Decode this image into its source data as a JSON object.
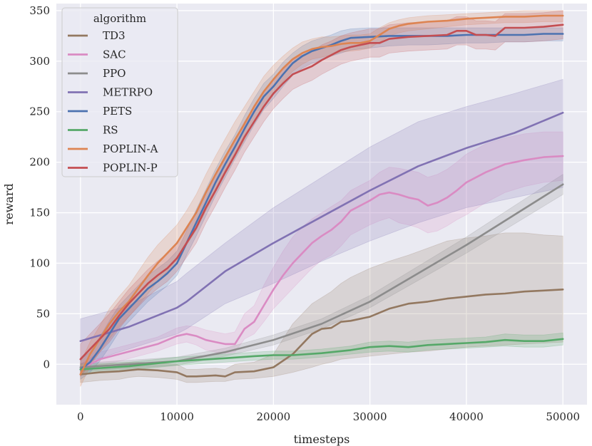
{
  "chart_data": {
    "type": "line",
    "xlabel": "timesteps",
    "ylabel": "reward",
    "xlim": [
      -2500,
      52500
    ],
    "ylim": [
      -40,
      357
    ],
    "xticks": [
      0,
      10000,
      20000,
      30000,
      40000,
      50000
    ],
    "yticks": [
      0,
      50,
      100,
      150,
      200,
      250,
      300,
      350
    ],
    "grid": true,
    "legend": {
      "title": "algorithm",
      "position": "top-left"
    },
    "series": [
      {
        "name": "TD3",
        "color": "#937860",
        "x": [
          0,
          2000,
          4000,
          5000,
          6000,
          8000,
          10000,
          11000,
          12000,
          14000,
          15000,
          16000,
          18000,
          20000,
          22000,
          24000,
          25000,
          26000,
          27000,
          28000,
          30000,
          32000,
          34000,
          36000,
          38000,
          40000,
          42000,
          44000,
          46000,
          48000,
          50000
        ],
        "y": [
          -10,
          -8,
          -7,
          -6,
          -5,
          -6,
          -8,
          -12,
          -12,
          -11,
          -12,
          -8,
          -7,
          -3,
          10,
          30,
          35,
          36,
          42,
          43,
          47,
          55,
          60,
          62,
          65,
          67,
          69,
          70,
          72,
          73,
          74
        ],
        "lo": [
          -18,
          -16,
          -15,
          -13,
          -12,
          -13,
          -15,
          -18,
          -18,
          -17,
          -17,
          -15,
          -14,
          -12,
          -8,
          -3,
          0,
          2,
          5,
          6,
          8,
          10,
          12,
          13,
          15,
          17,
          18,
          19,
          20,
          21,
          22
        ],
        "hi": [
          -4,
          0,
          1,
          2,
          2,
          1,
          0,
          -5,
          -5,
          -4,
          -5,
          0,
          2,
          10,
          40,
          60,
          66,
          72,
          80,
          86,
          95,
          102,
          108,
          115,
          122,
          125,
          127,
          130,
          130,
          128,
          127
        ]
      },
      {
        "name": "SAC",
        "color": "#da8bc3",
        "x": [
          0,
          2000,
          4000,
          6000,
          8000,
          10000,
          11000,
          12000,
          13000,
          14000,
          15000,
          16000,
          17000,
          18000,
          19000,
          20000,
          21000,
          22000,
          23000,
          24000,
          25000,
          26000,
          27000,
          28000,
          30000,
          31000,
          32000,
          33000,
          34000,
          35000,
          36000,
          37000,
          38000,
          39000,
          40000,
          42000,
          44000,
          46000,
          48000,
          50000
        ],
        "y": [
          -5,
          5,
          10,
          15,
          20,
          28,
          30,
          28,
          24,
          22,
          20,
          20,
          35,
          42,
          58,
          74,
          88,
          100,
          110,
          120,
          127,
          133,
          141,
          152,
          162,
          168,
          170,
          168,
          165,
          163,
          157,
          160,
          165,
          172,
          180,
          190,
          198,
          202,
          205,
          206
        ],
        "lo": [
          -10,
          -2,
          3,
          8,
          13,
          20,
          22,
          19,
          14,
          12,
          11,
          12,
          25,
          30,
          42,
          55,
          65,
          75,
          85,
          95,
          103,
          108,
          117,
          128,
          138,
          142,
          145,
          140,
          138,
          135,
          130,
          132,
          137,
          143,
          148,
          160,
          170,
          176,
          180,
          182
        ],
        "hi": [
          0,
          12,
          17,
          22,
          27,
          36,
          38,
          37,
          34,
          32,
          30,
          32,
          50,
          58,
          78,
          96,
          112,
          126,
          136,
          144,
          150,
          156,
          162,
          172,
          182,
          190,
          195,
          194,
          192,
          190,
          185,
          188,
          193,
          200,
          208,
          218,
          224,
          228,
          230,
          230
        ]
      },
      {
        "name": "PPO",
        "color": "#8c8c8c",
        "x": [
          0,
          5000,
          10000,
          15000,
          20000,
          25000,
          30000,
          35000,
          40000,
          45000,
          50000
        ],
        "y": [
          -3,
          0,
          3,
          12,
          24,
          40,
          62,
          90,
          118,
          148,
          178
        ],
        "lo": [
          -7,
          -4,
          -1,
          8,
          19,
          35,
          56,
          83,
          110,
          139,
          168
        ],
        "hi": [
          1,
          4,
          7,
          16,
          29,
          45,
          68,
          97,
          126,
          157,
          188
        ]
      },
      {
        "name": "METRPO",
        "color": "#8172b3",
        "x": [
          0,
          5000,
          10000,
          11000,
          15000,
          20000,
          25000,
          30000,
          35000,
          40000,
          45000,
          50000
        ],
        "y": [
          23,
          37,
          56,
          62,
          92,
          120,
          146,
          172,
          196,
          214,
          229,
          249
        ],
        "lo": [
          0,
          15,
          30,
          35,
          60,
          80,
          102,
          122,
          140,
          155,
          165,
          175
        ],
        "hi": [
          45,
          58,
          82,
          90,
          120,
          155,
          185,
          215,
          240,
          255,
          268,
          282
        ]
      },
      {
        "name": "PETS",
        "color": "#4c72b0",
        "x": [
          0,
          1000,
          2000,
          3000,
          4000,
          5000,
          6000,
          7000,
          8000,
          9000,
          10000,
          11000,
          12000,
          13000,
          14000,
          15000,
          16000,
          17000,
          18000,
          19000,
          20000,
          21000,
          22000,
          23000,
          24000,
          25000,
          26000,
          27000,
          28000,
          30000,
          32000,
          34000,
          36000,
          38000,
          40000,
          42000,
          44000,
          46000,
          48000,
          50000
        ],
        "y": [
          -5,
          2,
          15,
          30,
          45,
          55,
          65,
          75,
          82,
          90,
          100,
          120,
          140,
          160,
          180,
          198,
          215,
          233,
          250,
          265,
          275,
          287,
          298,
          305,
          310,
          313,
          316,
          320,
          323,
          324,
          325,
          325,
          325,
          325,
          326,
          326,
          326,
          326,
          327,
          327
        ],
        "lo": [
          -15,
          -8,
          3,
          17,
          32,
          42,
          52,
          62,
          70,
          78,
          88,
          108,
          127,
          147,
          167,
          185,
          203,
          220,
          237,
          252,
          263,
          275,
          286,
          293,
          298,
          301,
          305,
          308,
          311,
          313,
          315,
          316,
          316,
          317,
          318,
          318,
          319,
          319,
          320,
          320
        ],
        "hi": [
          5,
          12,
          27,
          43,
          58,
          68,
          78,
          88,
          95,
          102,
          112,
          132,
          153,
          173,
          193,
          211,
          227,
          246,
          263,
          278,
          287,
          299,
          308,
          315,
          320,
          323,
          326,
          330,
          332,
          333,
          333,
          333,
          333,
          333,
          333,
          333,
          333,
          333,
          333,
          333
        ]
      },
      {
        "name": "RS",
        "color": "#55a868",
        "x": [
          0,
          5000,
          10000,
          15000,
          18000,
          20000,
          22000,
          25000,
          28000,
          30000,
          32000,
          34000,
          36000,
          38000,
          40000,
          42000,
          44000,
          46000,
          48000,
          50000
        ],
        "y": [
          -5,
          -2,
          3,
          6,
          8,
          9,
          9,
          11,
          14,
          17,
          18,
          17,
          19,
          20,
          21,
          22,
          24,
          23,
          23,
          25
        ],
        "lo": [
          -10,
          -6,
          -1,
          2,
          4,
          5,
          5,
          7,
          10,
          12,
          13,
          12,
          14,
          15,
          16,
          17,
          18,
          17,
          17,
          19
        ],
        "hi": [
          0,
          2,
          7,
          10,
          12,
          13,
          13,
          15,
          18,
          22,
          23,
          22,
          24,
          25,
          26,
          27,
          30,
          29,
          29,
          31
        ]
      },
      {
        "name": "POPLIN-A",
        "color": "#dd8452",
        "x": [
          0,
          1000,
          2000,
          3000,
          4000,
          5000,
          6000,
          7000,
          8000,
          9000,
          10000,
          11000,
          12000,
          13000,
          14000,
          15000,
          16000,
          17000,
          18000,
          19000,
          20000,
          21000,
          22000,
          23000,
          24000,
          25000,
          26000,
          27000,
          28000,
          29000,
          30000,
          31000,
          32000,
          33000,
          34000,
          35000,
          36000,
          38000,
          40000,
          42000,
          44000,
          46000,
          48000,
          50000
        ],
        "y": [
          -10,
          10,
          25,
          40,
          52,
          62,
          75,
          88,
          100,
          110,
          120,
          135,
          150,
          170,
          188,
          205,
          222,
          238,
          255,
          270,
          282,
          293,
          302,
          308,
          312,
          314,
          315,
          317,
          318,
          318,
          320,
          326,
          332,
          335,
          337,
          338,
          339,
          340,
          342,
          343,
          344,
          344,
          345,
          345
        ],
        "lo": [
          -22,
          -2,
          12,
          25,
          37,
          47,
          58,
          70,
          82,
          92,
          103,
          118,
          133,
          152,
          170,
          188,
          205,
          222,
          240,
          255,
          268,
          280,
          290,
          297,
          302,
          304,
          306,
          309,
          310,
          311,
          313,
          319,
          325,
          328,
          330,
          331,
          332,
          334,
          336,
          337,
          338,
          338,
          339,
          339
        ],
        "hi": [
          2,
          22,
          38,
          55,
          67,
          78,
          92,
          106,
          118,
          128,
          138,
          152,
          168,
          188,
          206,
          223,
          240,
          255,
          270,
          285,
          296,
          305,
          313,
          319,
          322,
          324,
          324,
          325,
          326,
          326,
          327,
          333,
          338,
          341,
          343,
          344,
          345,
          346,
          347,
          348,
          349,
          350,
          350,
          350
        ]
      },
      {
        "name": "POPLIN-P",
        "color": "#c44e52",
        "x": [
          0,
          1000,
          2000,
          3000,
          4000,
          5000,
          6000,
          7000,
          8000,
          9000,
          10000,
          11000,
          12000,
          13000,
          14000,
          15000,
          16000,
          17000,
          18000,
          19000,
          20000,
          21000,
          22000,
          23000,
          24000,
          25000,
          26000,
          27000,
          28000,
          29000,
          30000,
          31000,
          32000,
          33000,
          34000,
          36000,
          38000,
          39000,
          40000,
          41000,
          42000,
          43000,
          44000,
          46000,
          48000,
          50000
        ],
        "y": [
          5,
          15,
          25,
          35,
          48,
          60,
          70,
          80,
          88,
          95,
          105,
          120,
          135,
          155,
          172,
          190,
          207,
          225,
          240,
          255,
          268,
          278,
          287,
          291,
          295,
          301,
          306,
          311,
          314,
          316,
          318,
          318,
          322,
          323,
          324,
          325,
          326,
          330,
          330,
          326,
          326,
          325,
          333,
          333,
          334,
          336
        ],
        "lo": [
          -12,
          0,
          12,
          22,
          35,
          47,
          57,
          67,
          75,
          82,
          92,
          106,
          120,
          140,
          157,
          175,
          192,
          210,
          225,
          240,
          253,
          263,
          272,
          277,
          281,
          287,
          292,
          297,
          300,
          302,
          304,
          304,
          308,
          309,
          310,
          311,
          312,
          316,
          316,
          312,
          312,
          311,
          319,
          319,
          320,
          322
        ],
        "hi": [
          20,
          30,
          40,
          50,
          62,
          74,
          84,
          94,
          102,
          110,
          120,
          134,
          150,
          170,
          188,
          206,
          222,
          240,
          255,
          270,
          283,
          293,
          302,
          306,
          310,
          316,
          320,
          325,
          328,
          330,
          332,
          332,
          336,
          337,
          338,
          339,
          340,
          344,
          344,
          340,
          340,
          339,
          347,
          347,
          348,
          350
        ]
      }
    ]
  }
}
